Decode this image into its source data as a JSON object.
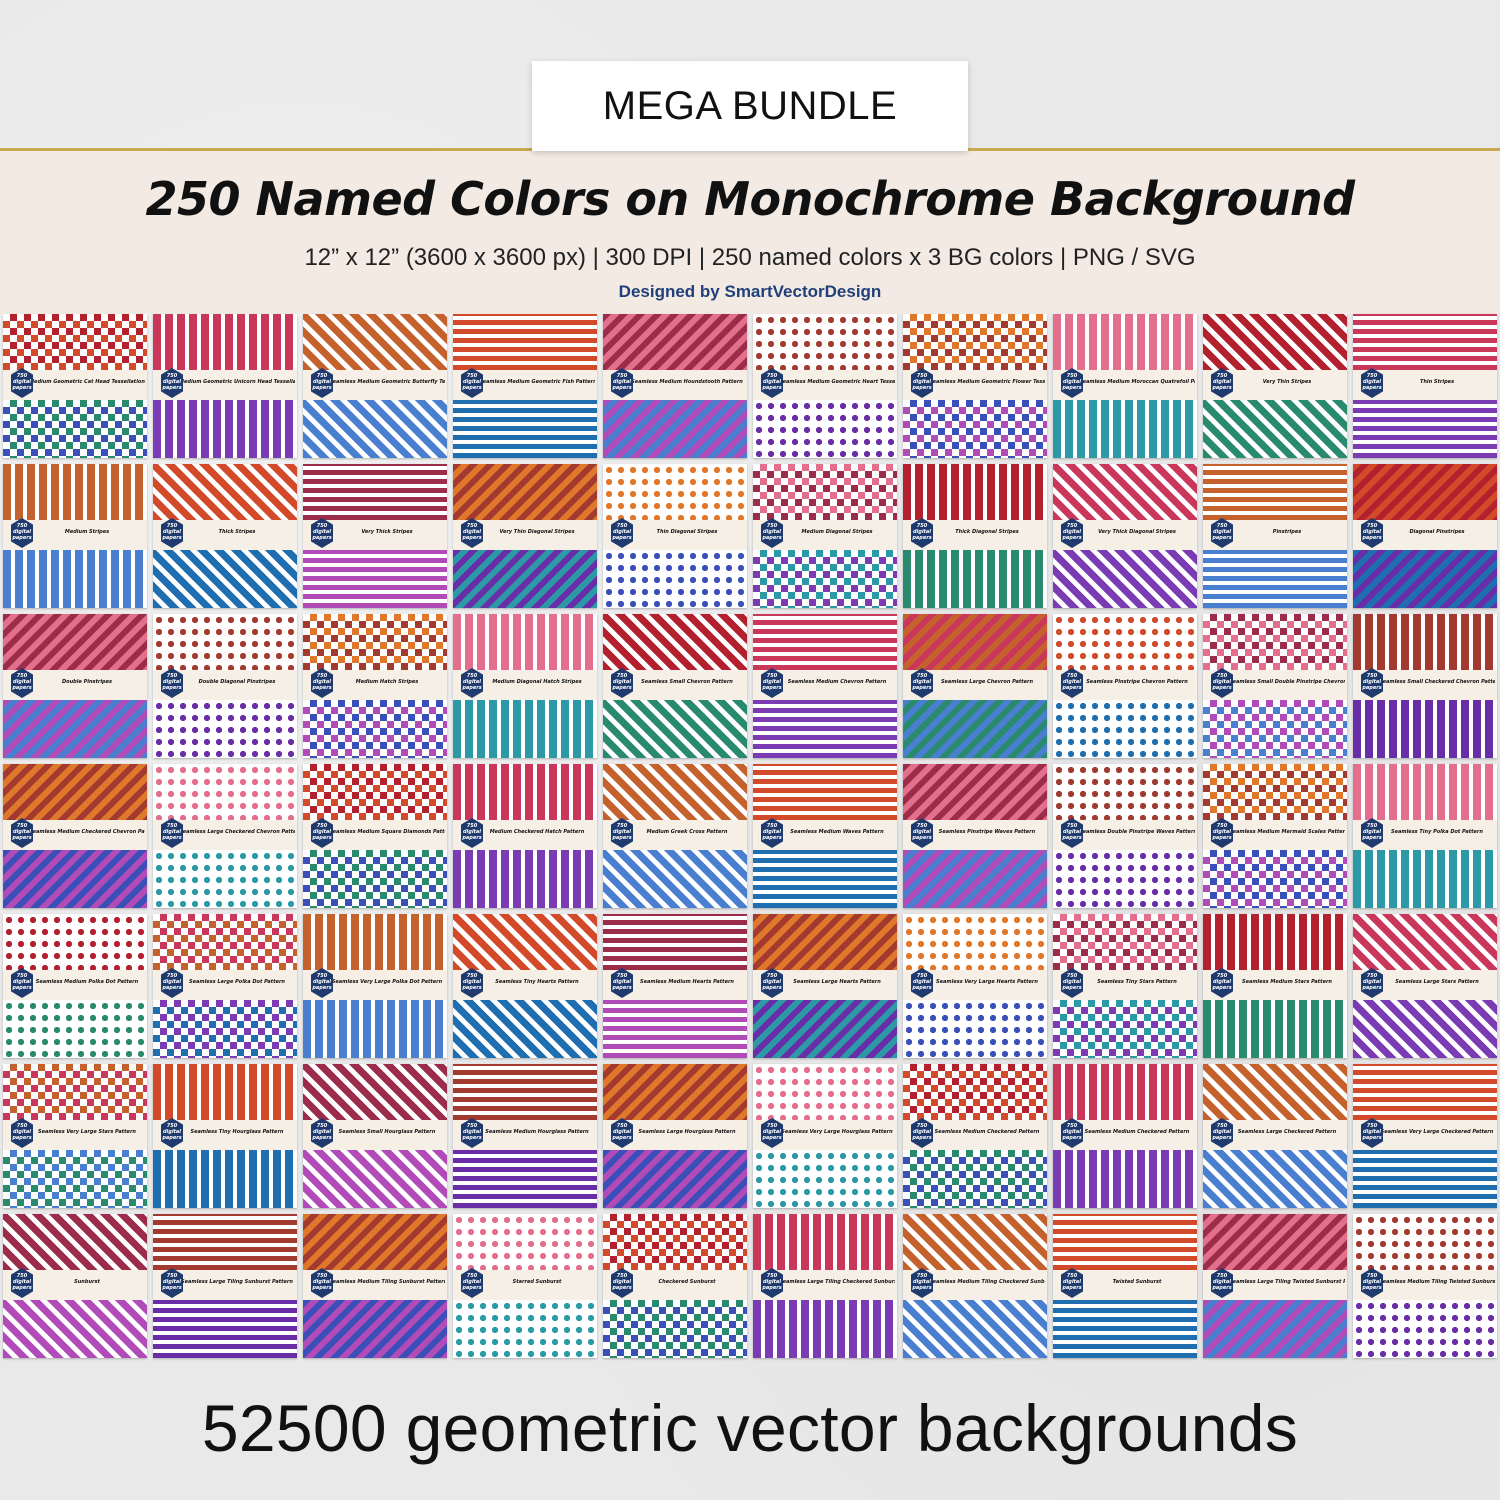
{
  "header": {
    "badge_label": "MEGA BUNDLE",
    "title": "250 Named Colors on Monochrome Background",
    "specs": "12” x 12” (3600 x 3600 px) | 300 DPI | 250 named colors x 3 BG colors | PNG / SVG",
    "designer": "Designed by SmartVectorDesign"
  },
  "thumb_badge": "750 digital papers",
  "thumbnails": [
    "Medium Geometric Cat Head Tessellation",
    "Medium Geometric Unicorn Head Tessellation",
    "Seamless Medium Geometric Butterfly Tessellation",
    "Seamless Medium Geometric Fish Pattern",
    "Seamless Medium Houndstooth Pattern",
    "Seamless Medium Geometric Heart Tessellation",
    "Seamless Medium Geometric Flower Tessellation",
    "Seamless Medium Moroccan Quatrefoil Pattern",
    "Very Thin Stripes",
    "Thin Stripes",
    "Medium Stripes",
    "Thick Stripes",
    "Very Thick Stripes",
    "Very Thin Diagonal Stripes",
    "Thin Diagonal Stripes",
    "Medium Diagonal Stripes",
    "Thick Diagonal Stripes",
    "Very Thick Diagonal Stripes",
    "Pinstripes",
    "Diagonal Pinstripes",
    "Double Pinstripes",
    "Double Diagonal Pinstripes",
    "Medium Hatch Stripes",
    "Medium Diagonal Hatch Stripes",
    "Seamless Small Chevron Pattern",
    "Seamless Medium Chevron Pattern",
    "Seamless Large Chevron Pattern",
    "Seamless Pinstripe Chevron Pattern",
    "Seamless Small Double Pinstripe Chevron Pattern",
    "Seamless Small Checkered Chevron Pattern",
    "Seamless Medium Checkered Chevron Pattern",
    "Seamless Large Checkered Chevron Pattern",
    "Seamless Medium Square Diamonds Pattern",
    "Medium Checkered Hatch Pattern",
    "Medium Greek Cross Pattern",
    "Seamless Medium Waves Pattern",
    "Seamless Pinstripe Waves Pattern",
    "Seamless Double Pinstripe Waves Pattern",
    "Seamless Medium Mermaid Scales Pattern",
    "Seamless Tiny Polka Dot Pattern",
    "Seamless Medium Polka Dot Pattern",
    "Seamless Large Polka Dot Pattern",
    "Seamless Very Large Polka Dot Pattern",
    "Seamless Tiny Hearts Pattern",
    "Seamless Medium Hearts Pattern",
    "Seamless Large Hearts Pattern",
    "Seamless Very Large Hearts Pattern",
    "Seamless Tiny Stars Pattern",
    "Seamless Medium Stars Pattern",
    "Seamless Large Stars Pattern",
    "Seamless Very Large Stars Pattern",
    "Seamless Tiny Hourglass Pattern",
    "Seamless Small Hourglass Pattern",
    "Seamless Medium Hourglass Pattern",
    "Seamless Large Hourglass Pattern",
    "Seamless Very Large Hourglass Pattern",
    "Seamless Medium Checkered Pattern",
    "Seamless Medium Checkered Pattern",
    "Seamless Large Checkered Pattern",
    "Seamless Very Large Checkered Pattern",
    "Sunburst",
    "Seamless Large Tiling Sunburst Pattern",
    "Seamless Medium Tiling Sunburst Pattern",
    "Starred Sunburst",
    "Checkered Sunburst",
    "Seamless Large Tiling Checkered Sunburst Pattern",
    "Seamless Medium Tiling Checkered Sunburst Pattern",
    "Twisted Sunburst",
    "Seamless Large Tiling Twisted Sunburst Pattern",
    "Seamless Medium Tiling Twisted Sunburst Pattern"
  ],
  "footer": "52500 geometric vector backgrounds"
}
